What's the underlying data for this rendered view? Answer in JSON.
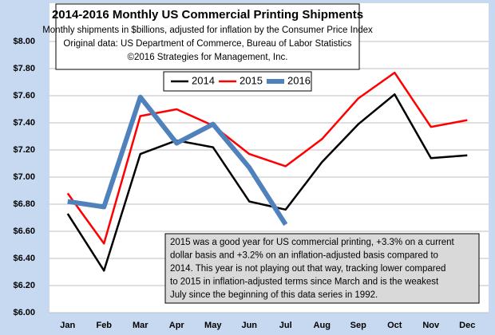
{
  "chart_data": {
    "type": "line",
    "title": "2014-2016 Monthly US Commercial Printing Shipments",
    "subtitle": "Monthly shipments in $billions, adjusted for inflation by the Consumer Price Index",
    "source": "Original data: US Department of Commerce, Bureau of Labor Statistics",
    "copyright": "©2016 Strategies for Management, Inc.",
    "annotation": [
      "2015 was a good year for US commercial printing, +3.3% on a current",
      "dollar basis and +3.2% on an inflation-adjusted basis compared to",
      "2014. This year is not playing out that way, tracking lower compared",
      "to 2015 in inflation-adjusted terms since March and is the weakest",
      "July since the beginning of this data series in 1992."
    ],
    "categories": [
      "Jan",
      "Feb",
      "Mar",
      "Apr",
      "May",
      "Jun",
      "Jul",
      "Aug",
      "Sep",
      "Oct",
      "Nov",
      "Dec"
    ],
    "series": [
      {
        "name": "2014",
        "color": "#000000",
        "width": 2.5,
        "values": [
          6.73,
          6.31,
          7.17,
          7.27,
          7.22,
          6.82,
          6.76,
          7.11,
          7.39,
          7.61,
          7.14,
          7.16
        ]
      },
      {
        "name": "2015",
        "color": "#ff0000",
        "width": 2.5,
        "values": [
          6.88,
          6.51,
          7.45,
          7.5,
          7.38,
          7.17,
          7.08,
          7.28,
          7.58,
          7.77,
          7.37,
          7.42
        ]
      },
      {
        "name": "2016",
        "color": "#4f81bd",
        "width": 6,
        "values": [
          6.82,
          6.78,
          7.59,
          7.25,
          7.39,
          7.07,
          6.65,
          null,
          null,
          null,
          null,
          null
        ]
      }
    ],
    "ylim": [
      6,
      8
    ],
    "yticks": [
      {
        "value": 6,
        "label": "$6.00"
      },
      {
        "value": 6.2,
        "label": "$6.20"
      },
      {
        "value": 6.4,
        "label": "$6.40"
      },
      {
        "value": 6.6,
        "label": "$6.60"
      },
      {
        "value": 6.8,
        "label": "$6.80"
      },
      {
        "value": 7,
        "label": "$7.00"
      },
      {
        "value": 7.2,
        "label": "$7.20"
      },
      {
        "value": 7.4,
        "label": "$7.40"
      },
      {
        "value": 7.6,
        "label": "$7.60"
      },
      {
        "value": 7.8,
        "label": "$7.80"
      },
      {
        "value": 8,
        "label": "$8.00"
      }
    ],
    "grid": true
  }
}
